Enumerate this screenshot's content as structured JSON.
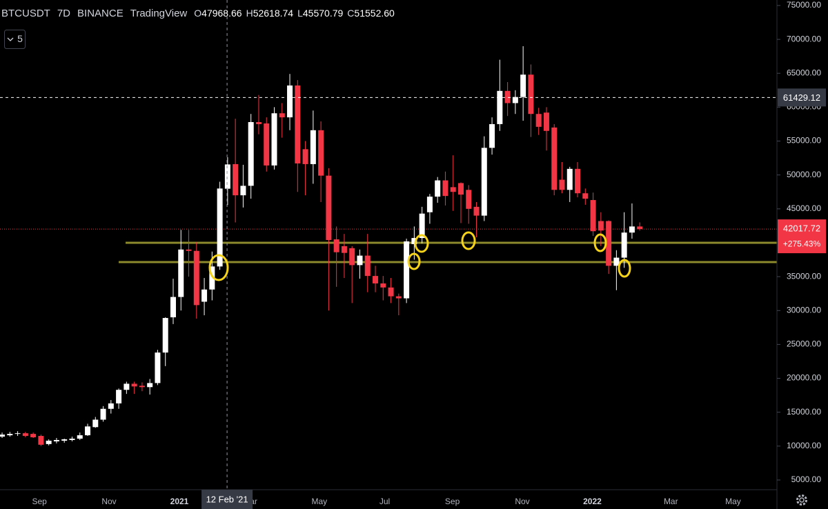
{
  "header": {
    "symbol": "BTCUSDT",
    "interval": "7D",
    "exchange": "BINANCE",
    "source": "TradingView",
    "ohlc": [
      {
        "key": "O",
        "text": "47968.66"
      },
      {
        "key": "H",
        "text": "52618.74"
      },
      {
        "key": "L",
        "text": "45570.79"
      },
      {
        "key": "C",
        "text": "51552.60"
      }
    ]
  },
  "toolbar": {
    "collapsed_count": "5"
  },
  "chart_data": {
    "type": "candlestick",
    "up_color": "#ffffff",
    "down_color": "#f23645",
    "grid": false,
    "candles": {
      "open": [
        11400,
        11600,
        11800,
        11900,
        11800,
        11500,
        10300,
        10700,
        10800,
        10900,
        11100,
        11600,
        12800,
        13900,
        15500,
        16300,
        18300,
        19200,
        18900,
        18700,
        19300,
        23800,
        29000,
        32000,
        39000,
        38800,
        31300,
        33100,
        36500,
        47968.66,
        51600,
        47000,
        48400,
        57800,
        57600,
        51400,
        59100,
        58500,
        63200,
        53800,
        51600,
        56600,
        49900,
        40500,
        39500,
        39200,
        36700,
        38100,
        35100,
        34000,
        33400,
        32100,
        31800,
        39800,
        40700,
        44500,
        46800,
        49200,
        48200,
        48800,
        47800,
        45300,
        44000,
        54000,
        57500,
        62400,
        60600,
        61500,
        64800,
        59000,
        59200,
        57000,
        49300,
        47800,
        50900,
        47300,
        46300,
        43200,
        43200,
        36600,
        37800,
        41500,
        42400
      ],
      "high": [
        12000,
        12100,
        12200,
        12100,
        12000,
        11700,
        11000,
        11200,
        11100,
        11400,
        12000,
        13300,
        14300,
        15900,
        16800,
        18500,
        19500,
        19500,
        19400,
        19900,
        24200,
        29000,
        34700,
        41900,
        41900,
        40100,
        34800,
        38700,
        49000,
        52618.74,
        58300,
        51500,
        59000,
        61800,
        58500,
        60000,
        60600,
        64900,
        64000,
        55000,
        59500,
        57900,
        51000,
        42400,
        41300,
        39500,
        39000,
        41300,
        36600,
        35100,
        34800,
        32500,
        40600,
        42400,
        45300,
        47200,
        49700,
        50500,
        52900,
        48900,
        48500,
        46000,
        55700,
        58500,
        67000,
        63700,
        62500,
        69000,
        66300,
        59900,
        60000,
        57500,
        51900,
        51200,
        51900,
        48000,
        47400,
        44500,
        43300,
        38900,
        44500,
        45800,
        43000
      ],
      "low": [
        11200,
        11400,
        11500,
        11300,
        11200,
        10000,
        10100,
        10400,
        10500,
        10700,
        10900,
        11500,
        12700,
        13600,
        14800,
        15500,
        17700,
        17700,
        18100,
        17600,
        19000,
        21800,
        28000,
        30000,
        35000,
        28800,
        29300,
        31500,
        36000,
        45570.79,
        43000,
        45200,
        46500,
        56000,
        50500,
        50800,
        55500,
        56600,
        47500,
        47000,
        48700,
        46000,
        30000,
        33500,
        34800,
        31100,
        34700,
        32700,
        32700,
        31500,
        31100,
        29300,
        31100,
        37500,
        39900,
        42800,
        45900,
        45500,
        44700,
        42900,
        42800,
        40800,
        43200,
        53000,
        56500,
        58700,
        59000,
        58000,
        55600,
        55900,
        53600,
        47000,
        47300,
        46000,
        46700,
        45600,
        41000,
        39500,
        35400,
        33000,
        36300,
        40600,
        41800
      ],
      "close": [
        11700,
        11800,
        11900,
        11500,
        11300,
        10200,
        10800,
        10900,
        11000,
        11100,
        11600,
        12900,
        13900,
        15500,
        16300,
        18300,
        19200,
        18800,
        18700,
        19300,
        23800,
        28900,
        32000,
        39000,
        38800,
        30800,
        33100,
        36500,
        48000,
        51552.6,
        47000,
        48400,
        57800,
        57500,
        51400,
        59100,
        58500,
        63200,
        51700,
        51600,
        56600,
        49900,
        40400,
        38600,
        38500,
        36700,
        38100,
        35100,
        34000,
        33400,
        32100,
        31800,
        40200,
        40700,
        44300,
        46800,
        49200,
        46900,
        47500,
        47100,
        45000,
        44000,
        54000,
        57500,
        62400,
        60600,
        61500,
        64800,
        59000,
        57100,
        56500,
        47800,
        47800,
        50900,
        47300,
        46500,
        41700,
        41800,
        36600,
        37800,
        41500,
        42400,
        42017.72
      ]
    },
    "xlim": [
      -0.27,
      99.64
    ],
    "xticks": [
      {
        "value": 4.8,
        "label": "Sep"
      },
      {
        "value": 13.75,
        "label": "Nov"
      },
      {
        "value": 22.8,
        "label": "2021"
      },
      {
        "value": 31.9,
        "label": "Mar"
      },
      {
        "value": 40.8,
        "label": "May"
      },
      {
        "value": 49.2,
        "label": "Jul"
      },
      {
        "value": 57.9,
        "label": "Sep"
      },
      {
        "value": 66.9,
        "label": "Nov"
      },
      {
        "value": 75.9,
        "label": "2022"
      },
      {
        "value": 86,
        "label": "Mar"
      },
      {
        "value": 94,
        "label": "May"
      }
    ],
    "ylim": [
      3570,
      75810
    ],
    "yticks": [
      {
        "value": 75000,
        "label": "75000.00"
      },
      {
        "value": 70000,
        "label": "70000.00"
      },
      {
        "value": 65000,
        "label": "65000.00"
      },
      {
        "value": 60000,
        "label": "60000.00"
      },
      {
        "value": 55000,
        "label": "55000.00"
      },
      {
        "value": 50000,
        "label": "50000.00"
      },
      {
        "value": 45000,
        "label": "45000.00"
      },
      {
        "value": 40000,
        "label": "40000.00"
      },
      {
        "value": 35000,
        "label": "35000.00"
      },
      {
        "value": 30000,
        "label": "30000.00"
      },
      {
        "value": 25000,
        "label": "25000.00"
      },
      {
        "value": 20000,
        "label": "20000.00"
      },
      {
        "value": 15000,
        "label": "15000.00"
      },
      {
        "value": 10000,
        "label": "10000.00"
      },
      {
        "value": 5000,
        "label": "5000.00"
      }
    ],
    "crosshair": {
      "x": 28.93,
      "x_label": "12 Feb '21",
      "price": 61429.12
    },
    "last_price": 42017.72,
    "last_price_change": {
      "value": 275.43,
      "label": "+275.43%"
    },
    "support_lines": [
      40000,
      37150
    ],
    "support_color": "#8c8a2c"
  }
}
